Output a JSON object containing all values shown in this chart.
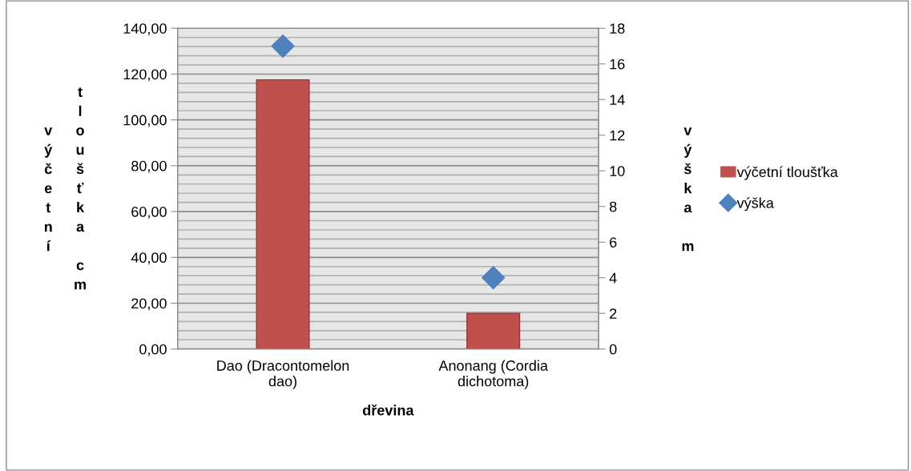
{
  "chart_data": {
    "type": "bar",
    "categories": [
      "Dao (Dracontomelon dao)",
      "Anonang (Cordia dichotoma)"
    ],
    "series": [
      {
        "name": "výčetní tloušťka",
        "color": "#c0504d",
        "values": [
          117.5,
          15.6
        ]
      },
      {
        "name": "výška",
        "type": "scatter",
        "axis": "y2",
        "color": "#4f81bd",
        "marker": "diamond",
        "values": [
          17,
          4
        ]
      }
    ],
    "xlabel": "dřevina",
    "ylabel": "výčetní tloušťka cm",
    "y2label": "výška m",
    "ylim": [
      0,
      140
    ],
    "yticks": [
      {
        "value": 0,
        "label": "0,00"
      },
      {
        "value": 20,
        "label": "20,00"
      },
      {
        "value": 40,
        "label": "40,00"
      },
      {
        "value": 60,
        "label": "60,00"
      },
      {
        "value": 80,
        "label": "80,00"
      },
      {
        "value": 100,
        "label": "100,00"
      },
      {
        "value": 120,
        "label": "120,00"
      },
      {
        "value": 140,
        "label": "140,00"
      }
    ],
    "y2lim": [
      0,
      18
    ],
    "y2ticks": [
      0,
      2,
      4,
      6,
      8,
      10,
      12,
      14,
      16,
      18
    ],
    "grid": "y",
    "legend": "right"
  }
}
